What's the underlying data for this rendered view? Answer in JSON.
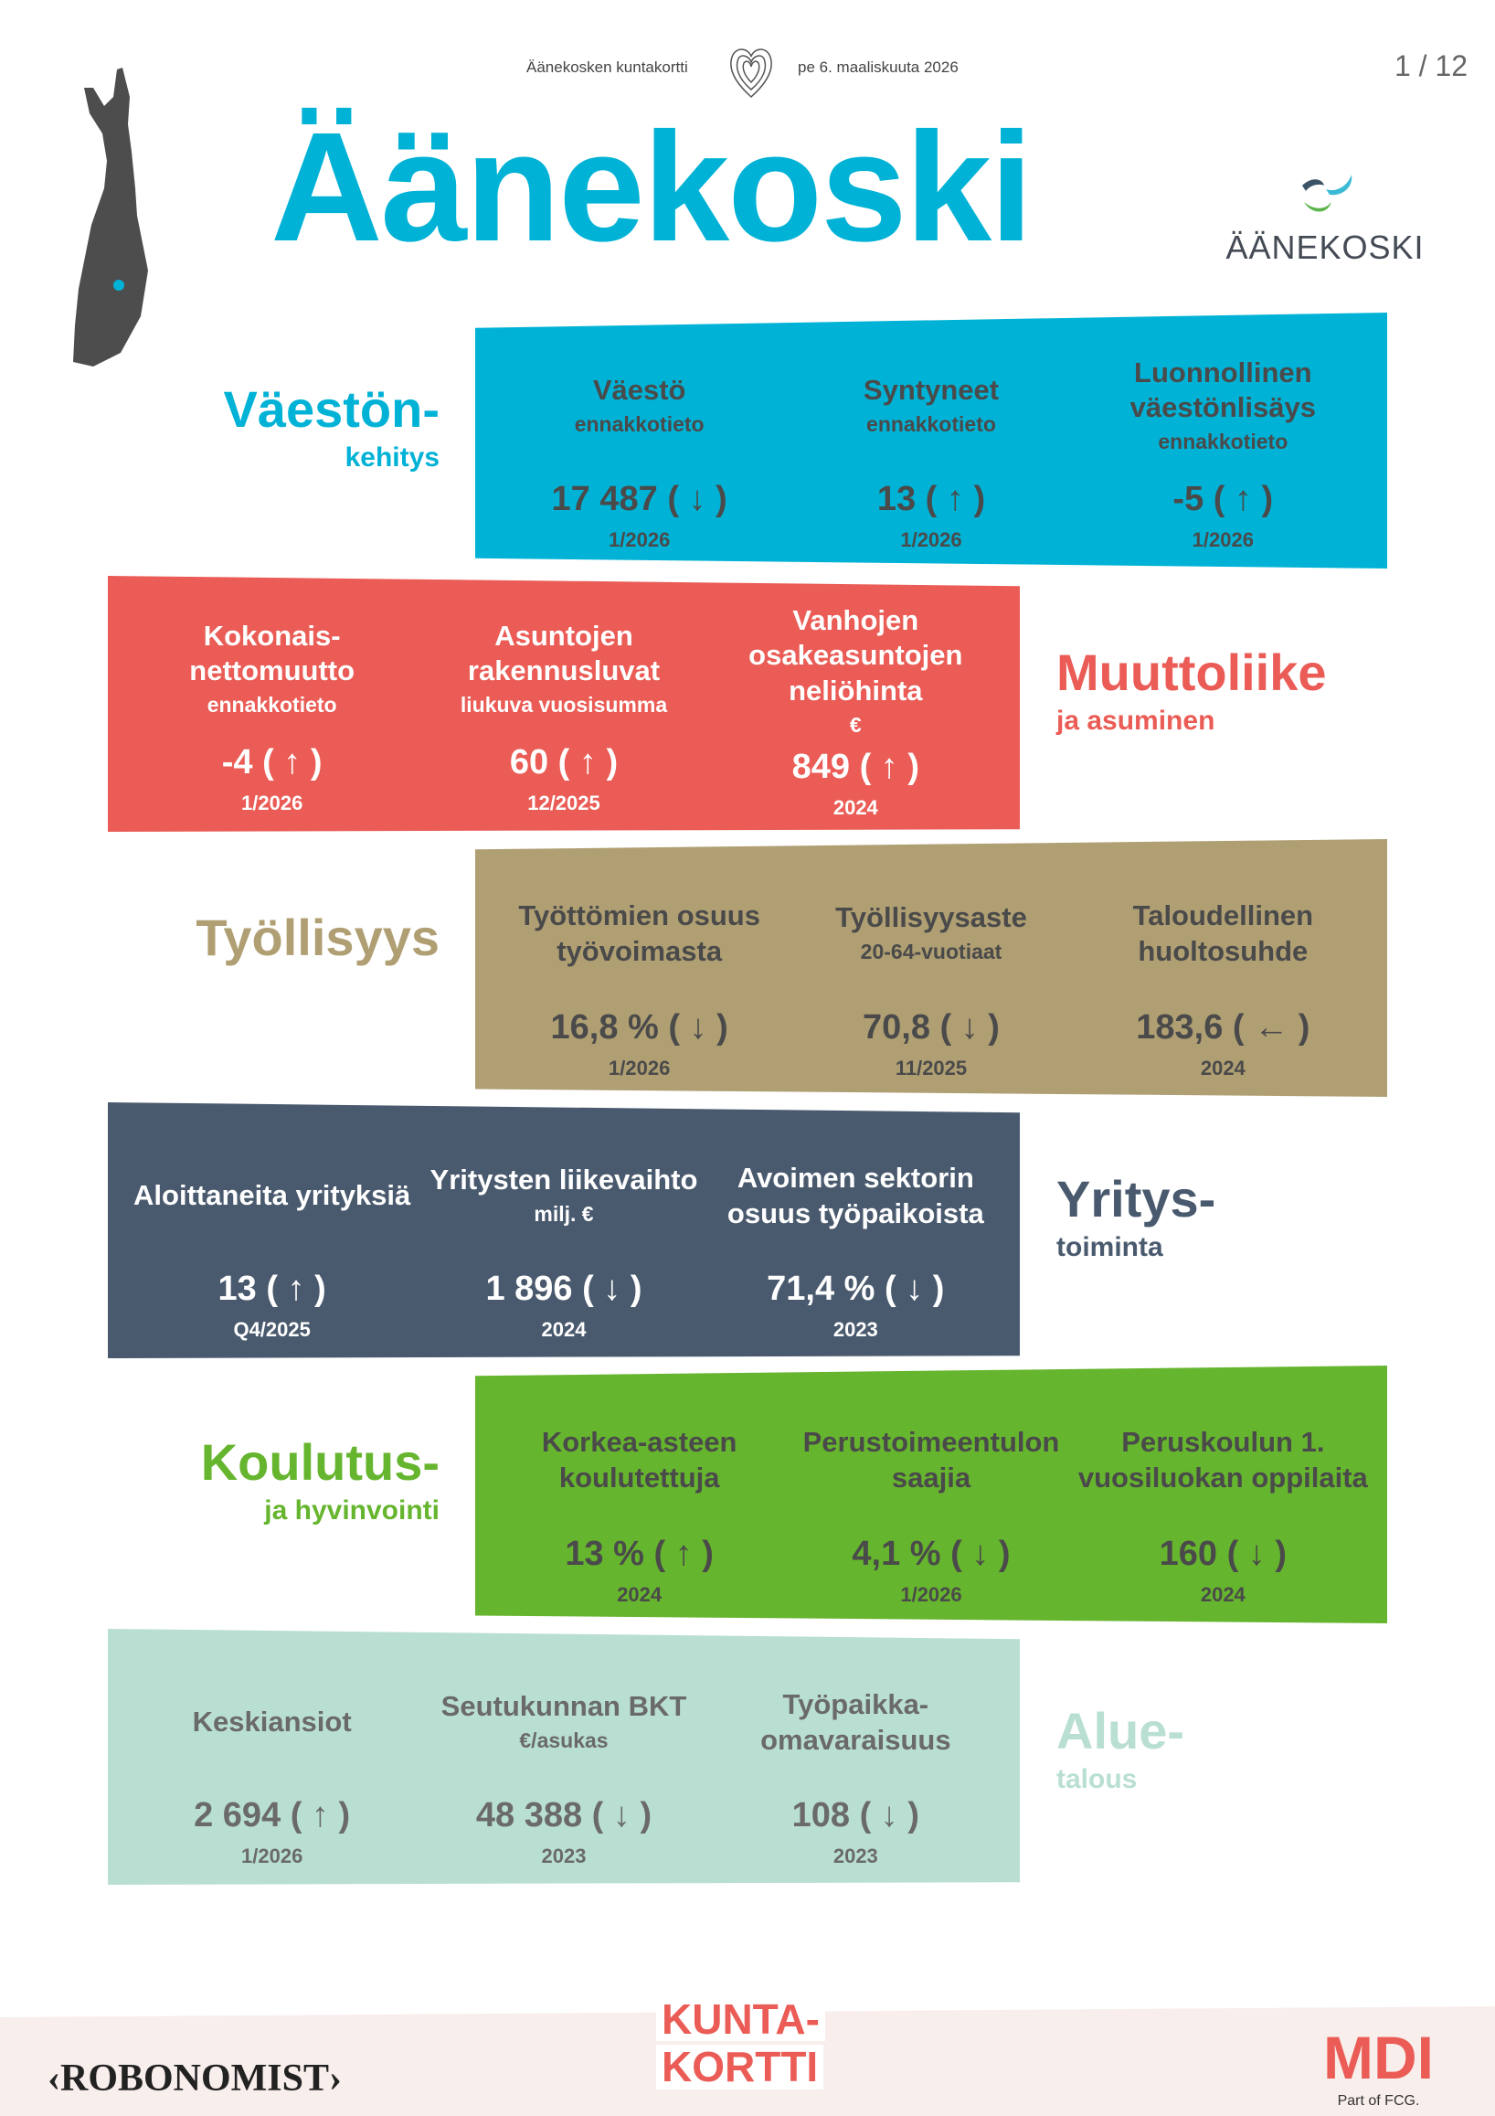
{
  "header": {
    "left_text": "Äänekosken kuntakortti",
    "right_text": "pe 6. maaliskuuta 2026",
    "page": "1 / 12"
  },
  "title": "Äänekoski",
  "logo_text": "ÄÄNEKOSKI",
  "trend_glyphs": {
    "up": "↑",
    "down": "↓",
    "left": "←"
  },
  "sections": [
    {
      "heading": "Väestön-",
      "subheading": "kehitys",
      "color": "#00b2d6",
      "text_color": "#4a4a4a",
      "items": [
        {
          "title": "Väestö",
          "sub": "ennakkotieto",
          "value": "17 487",
          "trend": "down",
          "period": "1/2026"
        },
        {
          "title": "Syntyneet",
          "sub": "ennakkotieto",
          "value": "13",
          "trend": "up",
          "period": "1/2026"
        },
        {
          "title": "Luonnollinen väestönlisäys",
          "sub": "ennakkotieto",
          "value": "-5",
          "trend": "up",
          "period": "1/2026"
        }
      ]
    },
    {
      "heading": "Muuttoliike",
      "subheading": "ja asuminen",
      "color": "#ea5c55",
      "text_color": "#ffffff",
      "items": [
        {
          "title": "Kokonais- nettomuutto",
          "sub": "ennakkotieto",
          "value": "-4",
          "trend": "up",
          "period": "1/2026"
        },
        {
          "title": "Asuntojen rakennusluvat",
          "sub": "liukuva vuosisumma",
          "value": "60",
          "trend": "up",
          "period": "12/2025"
        },
        {
          "title": "Vanhojen osakeasuntojen neliöhinta",
          "sub": "€",
          "value": "849",
          "trend": "up",
          "period": "2024"
        }
      ]
    },
    {
      "heading": "Työllisyys",
      "subheading": "",
      "color": "#b09f73",
      "text_color": "#4a4a4a",
      "items": [
        {
          "title": "Työttömien osuus työvoimasta",
          "sub": "",
          "value": "16,8 %",
          "trend": "down",
          "period": "1/2026"
        },
        {
          "title": "Työllisyysaste",
          "sub": "20-64-vuotiaat",
          "value": "70,8",
          "trend": "down",
          "period": "11/2025"
        },
        {
          "title": "Taloudellinen huoltosuhde",
          "sub": "",
          "value": "183,6",
          "trend": "left",
          "period": "2024"
        }
      ]
    },
    {
      "heading": "Yritys-",
      "subheading": "toiminta",
      "color": "#4a5a6e",
      "text_color": "#ffffff",
      "items": [
        {
          "title": "Aloittaneita yrityksiä",
          "sub": "",
          "value": "13",
          "trend": "up",
          "period": "Q4/2025"
        },
        {
          "title": "Yritysten liikevaihto",
          "sub": "milj. €",
          "value": "1 896",
          "trend": "down",
          "period": "2024"
        },
        {
          "title": "Avoimen sektorin osuus työpaikoista",
          "sub": "",
          "value": "71,4 %",
          "trend": "down",
          "period": "2023"
        }
      ]
    },
    {
      "heading": "Koulutus-",
      "subheading": "ja hyvinvointi",
      "color": "#66b52e",
      "text_color": "#4a4a4a",
      "items": [
        {
          "title": "Korkea-asteen koulutettuja",
          "sub": "",
          "value": "13 %",
          "trend": "up",
          "period": "2024"
        },
        {
          "title": "Perustoimeentulon saajia",
          "sub": "",
          "value": "4,1 %",
          "trend": "down",
          "period": "1/2026"
        },
        {
          "title": "Peruskoulun 1. vuosiluokan oppilaita",
          "sub": "",
          "value": "160",
          "trend": "down",
          "period": "2024"
        }
      ]
    },
    {
      "heading": "Alue-",
      "subheading": "talous",
      "color": "#b9dfd3",
      "text_color": "#6a6a6a",
      "items": [
        {
          "title": "Keskiansiot",
          "sub": "",
          "value": "2 694",
          "trend": "up",
          "period": "1/2026"
        },
        {
          "title": "Seutukunnan BKT",
          "sub": "€/asukas",
          "value": "48 388",
          "trend": "down",
          "period": "2023"
        },
        {
          "title": "Työpaikka- omavaraisuus",
          "sub": "",
          "value": "108",
          "trend": "down",
          "period": "2023"
        }
      ]
    }
  ],
  "footer": {
    "left_logo": "‹ROBONOMIST›",
    "center_line1": "KUNTA-",
    "center_line2": "KORTTI",
    "right_logo": "MDI",
    "right_sub": "Part of FCG."
  }
}
